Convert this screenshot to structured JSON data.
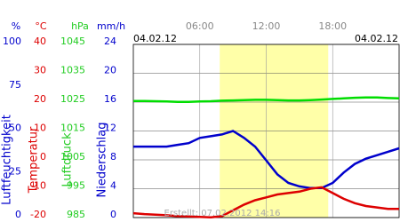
{
  "chart_data": {
    "type": "line",
    "date_left": "04.02.12",
    "date_right": "04.02.12",
    "watermark": "Erstellt: 07.02.2012 14:16",
    "xlim": [
      0,
      24
    ],
    "xticks": [
      {
        "value": 6,
        "label": "06:00"
      },
      {
        "value": 12,
        "label": "12:00"
      },
      {
        "value": 18,
        "label": "18:00"
      }
    ],
    "shade": {
      "from": 7.8,
      "to": 17.6,
      "color": "#ffffa8"
    },
    "grid": true,
    "axes": [
      {
        "unit": "%",
        "label": "Luftfeuchtigkeit",
        "color": "#0000cc",
        "lim": [
          0,
          100
        ],
        "ticks": [
          0,
          25,
          50,
          75,
          100
        ]
      },
      {
        "unit": "°C",
        "label": "Temperatur",
        "color": "#dd0000",
        "lim": [
          -20,
          40
        ],
        "ticks": [
          -20,
          -10,
          0,
          10,
          20,
          30,
          40
        ]
      },
      {
        "unit": "hPa",
        "label": "Luftdruck",
        "color": "#22cc22",
        "lim": [
          985,
          1045
        ],
        "ticks": [
          985,
          995,
          1005,
          1015,
          1025,
          1035,
          1045
        ]
      },
      {
        "unit": "mm/h",
        "label": "Niederschlag",
        "color": "#0000cc",
        "lim": [
          0,
          24
        ],
        "ticks": [
          0,
          4,
          8,
          12,
          16,
          20,
          24
        ]
      }
    ],
    "x": [
      0,
      1,
      2,
      3,
      4,
      5,
      6,
      7,
      8,
      9,
      10,
      11,
      12,
      13,
      14,
      15,
      16,
      17,
      18,
      19,
      20,
      21,
      22,
      23,
      24
    ],
    "series": [
      {
        "name": "Luftfeuchtigkeit",
        "color": "#0000cc",
        "axis": 0,
        "values": [
          41,
          41,
          41,
          41,
          42,
          43,
          46,
          47,
          48,
          50,
          46,
          41,
          33,
          25,
          20,
          18,
          17,
          17,
          20,
          26,
          31,
          34,
          36,
          38,
          40
        ]
      },
      {
        "name": "Temperatur",
        "color": "#dd0000",
        "axis": 1,
        "values": [
          -18.5,
          -18.8,
          -19,
          -19.2,
          -19.5,
          -19.6,
          -19.8,
          -19.9,
          -19.5,
          -17.5,
          -15.5,
          -14,
          -13,
          -12,
          -11.5,
          -11,
          -10,
          -9.5,
          -11.5,
          -13.5,
          -15,
          -16,
          -16.5,
          -17,
          -17
        ]
      },
      {
        "name": "Luftdruck",
        "color": "#00dd00",
        "axis": 2,
        "values": [
          1025.4,
          1025.4,
          1025.3,
          1025.2,
          1025.1,
          1025.1,
          1025.2,
          1025.3,
          1025.5,
          1025.6,
          1025.7,
          1025.8,
          1025.8,
          1025.7,
          1025.6,
          1025.6,
          1025.7,
          1025.9,
          1026.1,
          1026.3,
          1026.5,
          1026.6,
          1026.6,
          1026.4,
          1026.3
        ]
      }
    ]
  }
}
